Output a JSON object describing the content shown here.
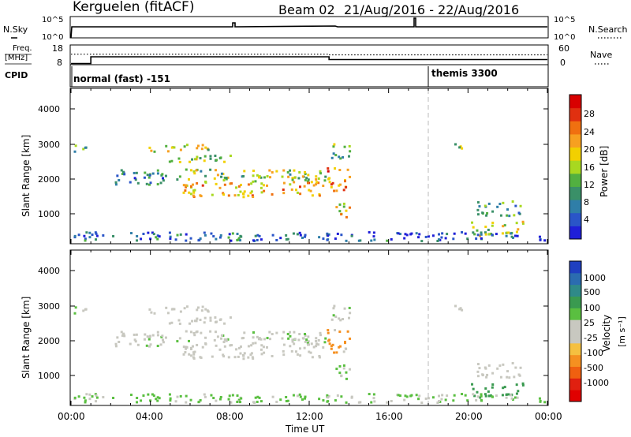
{
  "header": {
    "station": "Kerguelen (fitACF)",
    "beam": "Beam 02",
    "date_range": "21/Aug/2016 - 22/Aug/2016"
  },
  "nsky_panel": {
    "left_label": "N.Sky",
    "right_label": "N.Search",
    "left_ticks": [
      "10^5",
      "10^0"
    ],
    "right_ticks": [
      "10^5",
      "10^0"
    ]
  },
  "freq_panel": {
    "left_label_line1": "Freq.",
    "left_label_line2": "[MHz]",
    "right_label": "Nave",
    "left_ticks": [
      "18",
      "8"
    ],
    "right_ticks": [
      "60",
      "0"
    ],
    "freq_steps": [
      [
        0.0,
        8.6
      ],
      [
        1.0,
        8.6
      ],
      [
        1.0,
        12.0
      ],
      [
        13.0,
        12.0
      ],
      [
        13.0,
        10.6
      ],
      [
        24.0,
        10.6
      ]
    ],
    "nave_steps": [
      [
        0.0,
        32
      ],
      [
        13.0,
        32
      ],
      [
        13.0,
        30
      ],
      [
        24.0,
        30
      ]
    ]
  },
  "cpid_panel": {
    "label": "CPID",
    "modes": [
      {
        "text": "normal (fast) -151",
        "start": 0.0
      },
      {
        "text": "themis 3300",
        "start": 17.95
      }
    ]
  },
  "power_panel": {
    "ylabel": "Slant Range [km]",
    "y_ticks": [
      "4000",
      "3000",
      "2000",
      "1000"
    ],
    "colorbar_title": "Power [dB]",
    "colorbar_ticks": [
      "28",
      "24",
      "20",
      "16",
      "12",
      "8",
      "4"
    ],
    "colorbar_colors": [
      "#1f1fd8",
      "#2a55c8",
      "#2f7ea8",
      "#3a9068",
      "#52b040",
      "#a8d820",
      "#f2d000",
      "#f7a020",
      "#f07010",
      "#e03010",
      "#d80000"
    ]
  },
  "velocity_panel": {
    "ylabel": "Slant Range [km]",
    "y_ticks": [
      "4000",
      "3000",
      "2000",
      "1000"
    ],
    "colorbar_title": "Velocity",
    "colorbar_unit": "[m s⁻¹]",
    "colorbar_ticks": [
      "1000",
      "500",
      "100",
      "25",
      "-25",
      "-100",
      "-500",
      "-1000"
    ],
    "colorbar_colors": [
      "#1f3fc0",
      "#2b6cb0",
      "#2f8a88",
      "#3a9a50",
      "#5abf40",
      "#c8c8c0",
      "#c8c8c0",
      "#f5c040",
      "#f59020",
      "#f06010",
      "#e02010",
      "#e00000"
    ]
  },
  "x_axis": {
    "label": "Time UT",
    "ticks": [
      "00:00",
      "04:00",
      "08:00",
      "12:00",
      "16:00",
      "20:00",
      "00:00"
    ]
  },
  "chart_data": {
    "type": "heatmap",
    "title": "Kerguelen (fitACF)  Beam 02  21/Aug/2016 - 22/Aug/2016",
    "xlabel": "Time UT",
    "ylabel": "Slant Range [km]",
    "xlim_hours": [
      0,
      24
    ],
    "ylim_km": [
      180,
      4600
    ],
    "mode_change_hour": 17.95,
    "echo_regions": [
      {
        "t0": 0.1,
        "t1": 0.9,
        "r0": 2700,
        "r1": 2950,
        "power": 10,
        "velocity": 0
      },
      {
        "t0": 3.9,
        "t1": 7.4,
        "r0": 2750,
        "r1": 2950,
        "power": 16,
        "velocity": -40
      },
      {
        "t0": 4.0,
        "t1": 8.2,
        "r0": 2450,
        "r1": 2650,
        "power": 14,
        "velocity": -60
      },
      {
        "t0": 2.1,
        "t1": 4.8,
        "r0": 1800,
        "r1": 2300,
        "power": 8,
        "velocity": 0
      },
      {
        "t0": 5.0,
        "t1": 12.8,
        "r0": 1900,
        "r1": 2250,
        "power": 14,
        "velocity": 0
      },
      {
        "t0": 5.6,
        "t1": 12.7,
        "r0": 1450,
        "r1": 1900,
        "power": 20,
        "velocity": -20
      },
      {
        "t0": 12.8,
        "t1": 14.0,
        "r0": 1600,
        "r1": 2300,
        "power": 22,
        "velocity": -120
      },
      {
        "t0": 13.1,
        "t1": 14.0,
        "r0": 2500,
        "r1": 3050,
        "power": 12,
        "velocity": 0
      },
      {
        "t0": 13.2,
        "t1": 14.0,
        "r0": 850,
        "r1": 1350,
        "power": 18,
        "velocity": 30
      },
      {
        "t0": 19.1,
        "t1": 19.7,
        "r0": 2750,
        "r1": 3050,
        "power": 14,
        "velocity": 0
      },
      {
        "t0": 20.4,
        "t1": 22.6,
        "r0": 900,
        "r1": 1350,
        "power": 10,
        "velocity": -30
      },
      {
        "t0": 20.1,
        "t1": 22.8,
        "r0": 350,
        "r1": 750,
        "power": 16,
        "velocity": 150
      },
      {
        "t0": 0.0,
        "t1": 24.0,
        "r0": 200,
        "r1": 450,
        "power": 6,
        "velocity": 40
      }
    ]
  }
}
